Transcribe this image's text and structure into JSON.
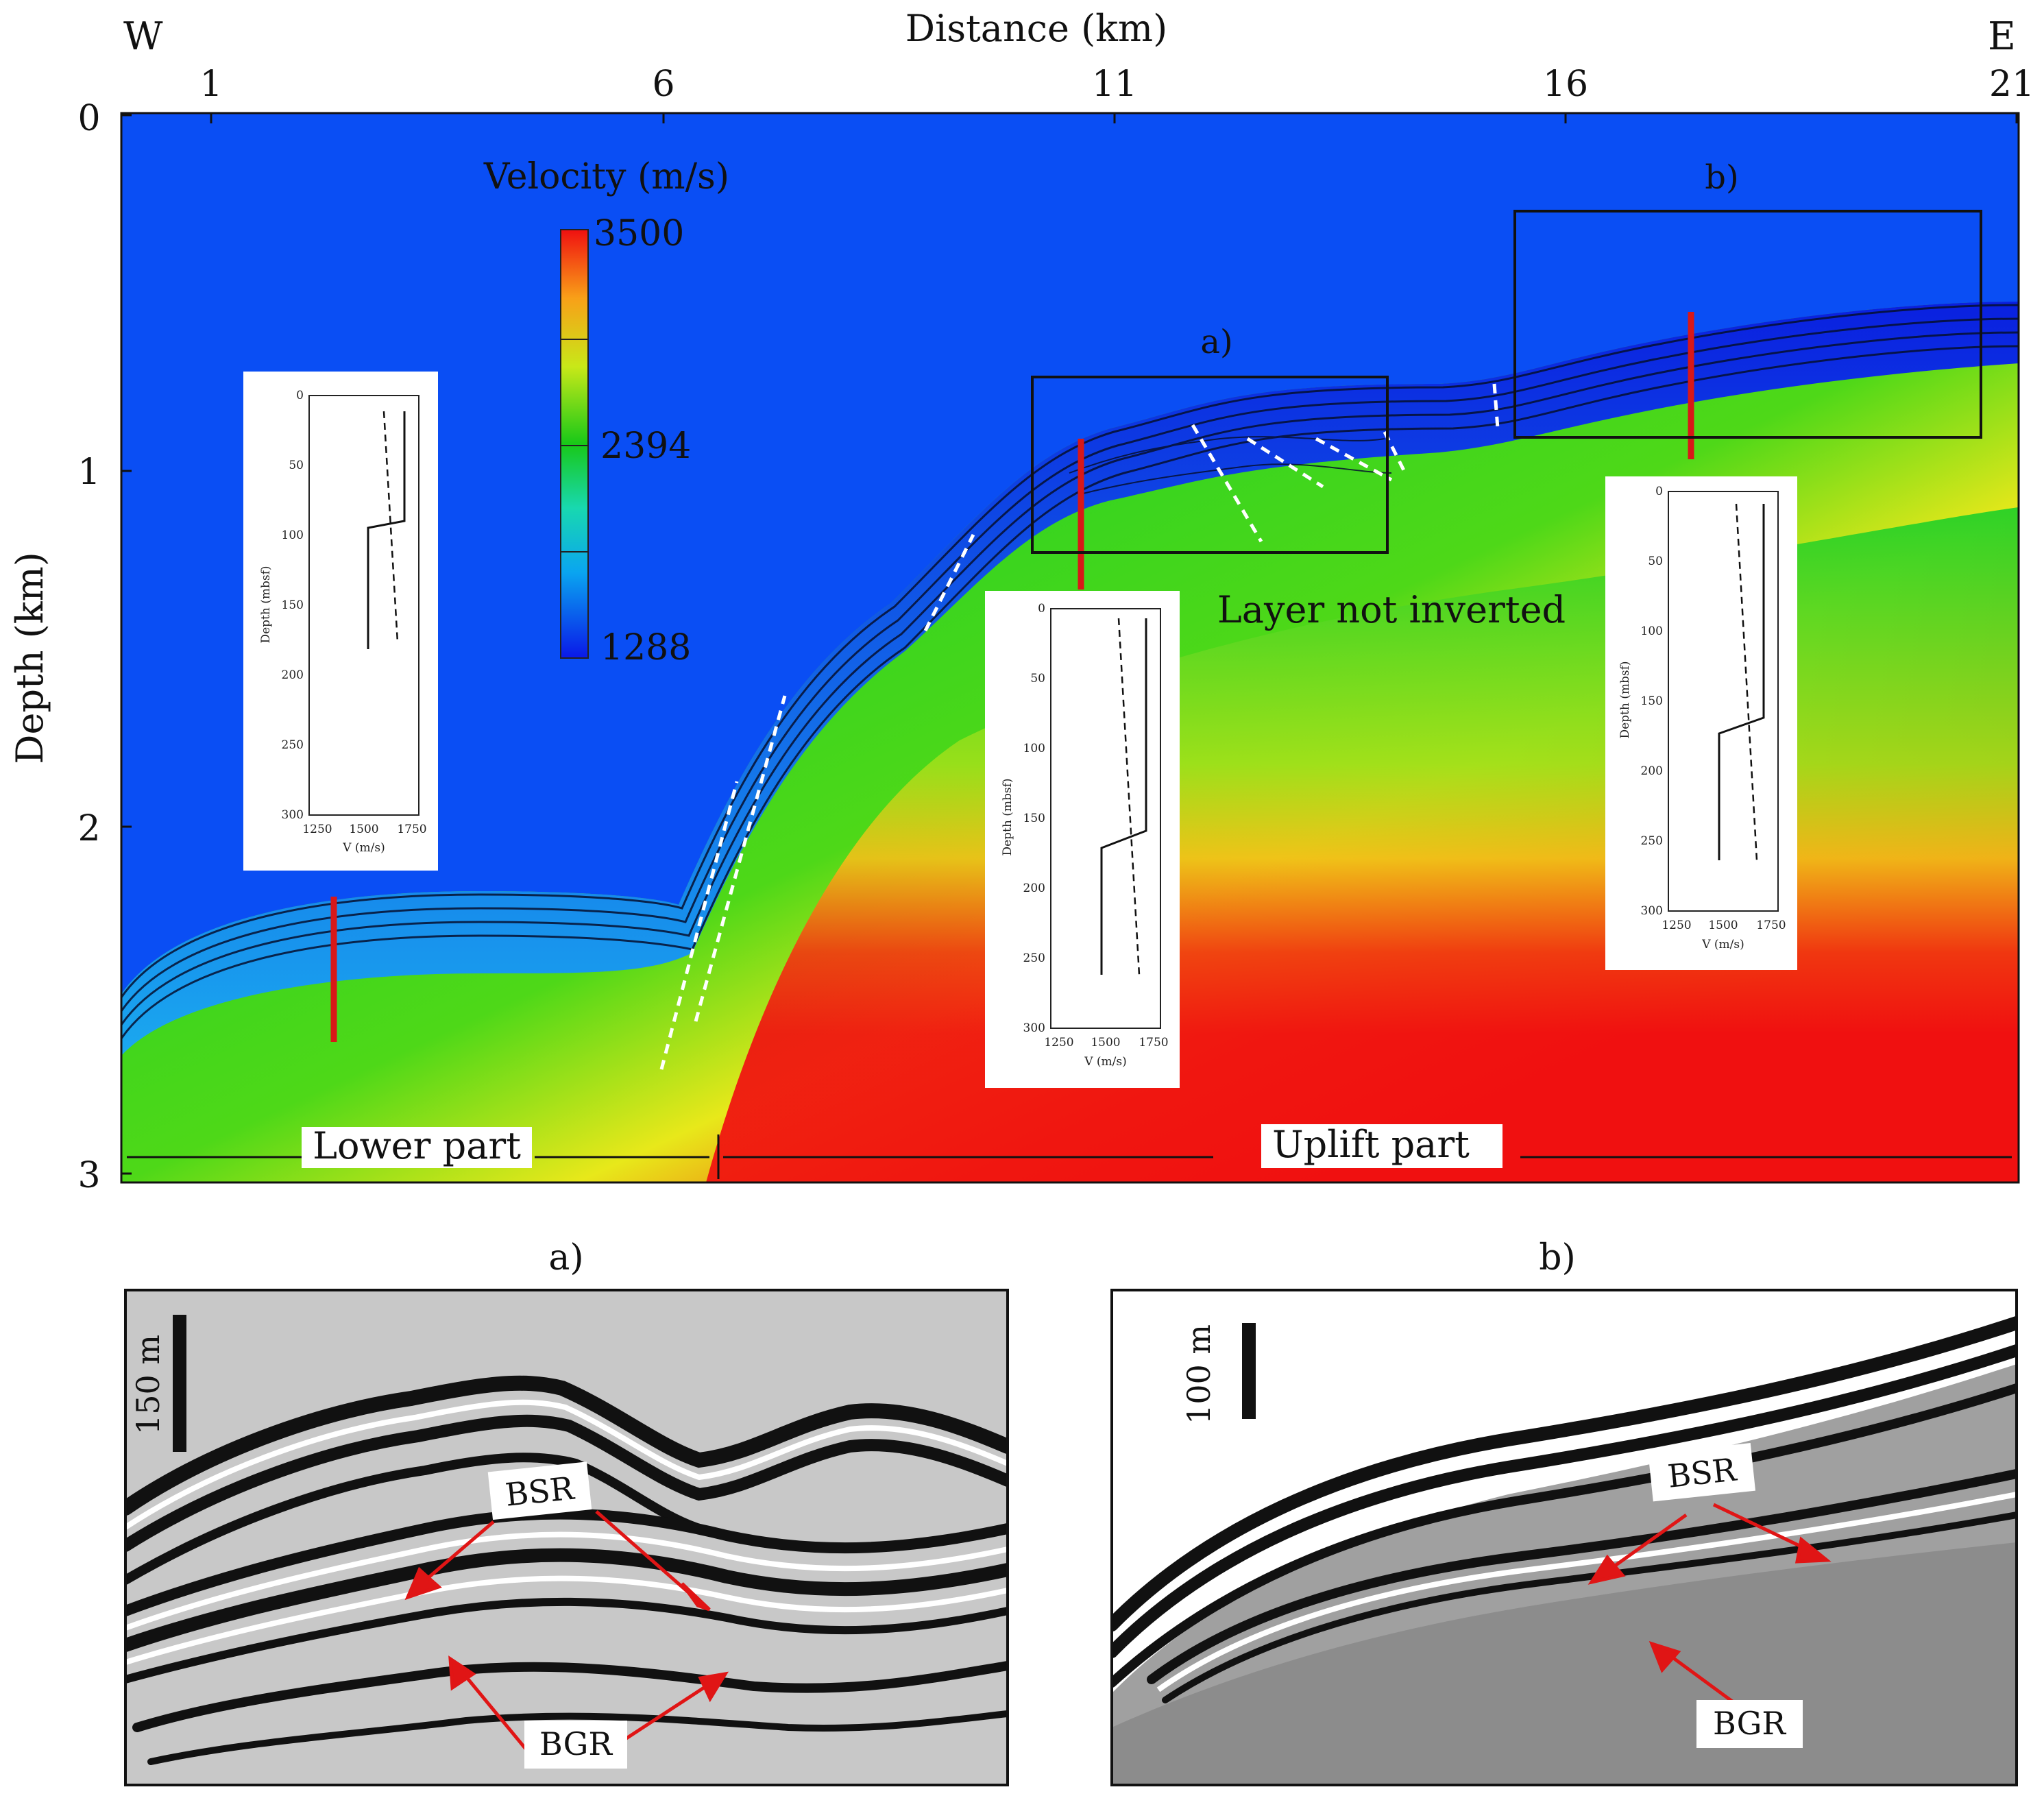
{
  "main": {
    "compass_west": "W",
    "compass_east": "E",
    "x_axis_title": "Distance (km)",
    "x_ticks": [
      "1",
      "6",
      "11",
      "16",
      "21"
    ],
    "y_axis_title": "Depth (km)",
    "y_ticks": [
      "0",
      "1",
      "2",
      "3"
    ],
    "colorbar_title": "Velocity (m/s)",
    "colorbar_ticks": [
      "3500",
      "2394",
      "1288"
    ],
    "box_a_label": "a)",
    "box_b_label": "b)",
    "layer_note": "Layer not inverted",
    "lower_part_label": "Lower part",
    "uplift_part_label": "Uplift part"
  },
  "profiles": {
    "xticks": [
      "1250",
      "1500",
      "1750"
    ],
    "yticks": [
      "0",
      "50",
      "100",
      "150",
      "200",
      "250",
      "300"
    ],
    "xlabel": "V (m/s)",
    "ylabel": "Depth (mbsf)"
  },
  "panel_a": {
    "title": "a)",
    "scale_bar": "150 m",
    "bsr": "BSR",
    "bgr": "BGR"
  },
  "panel_b": {
    "title": "b)",
    "scale_bar": "100 m",
    "bsr": "BSR",
    "bgr": "BGR"
  },
  "colors": {
    "low_velocity": "#0a2ff0",
    "mid_velocity": "#16c90c",
    "high_velocity": "#f20d0d",
    "well_marker": "#d81818",
    "arrow": "#e01515",
    "fault_lines": "#ffffff"
  }
}
